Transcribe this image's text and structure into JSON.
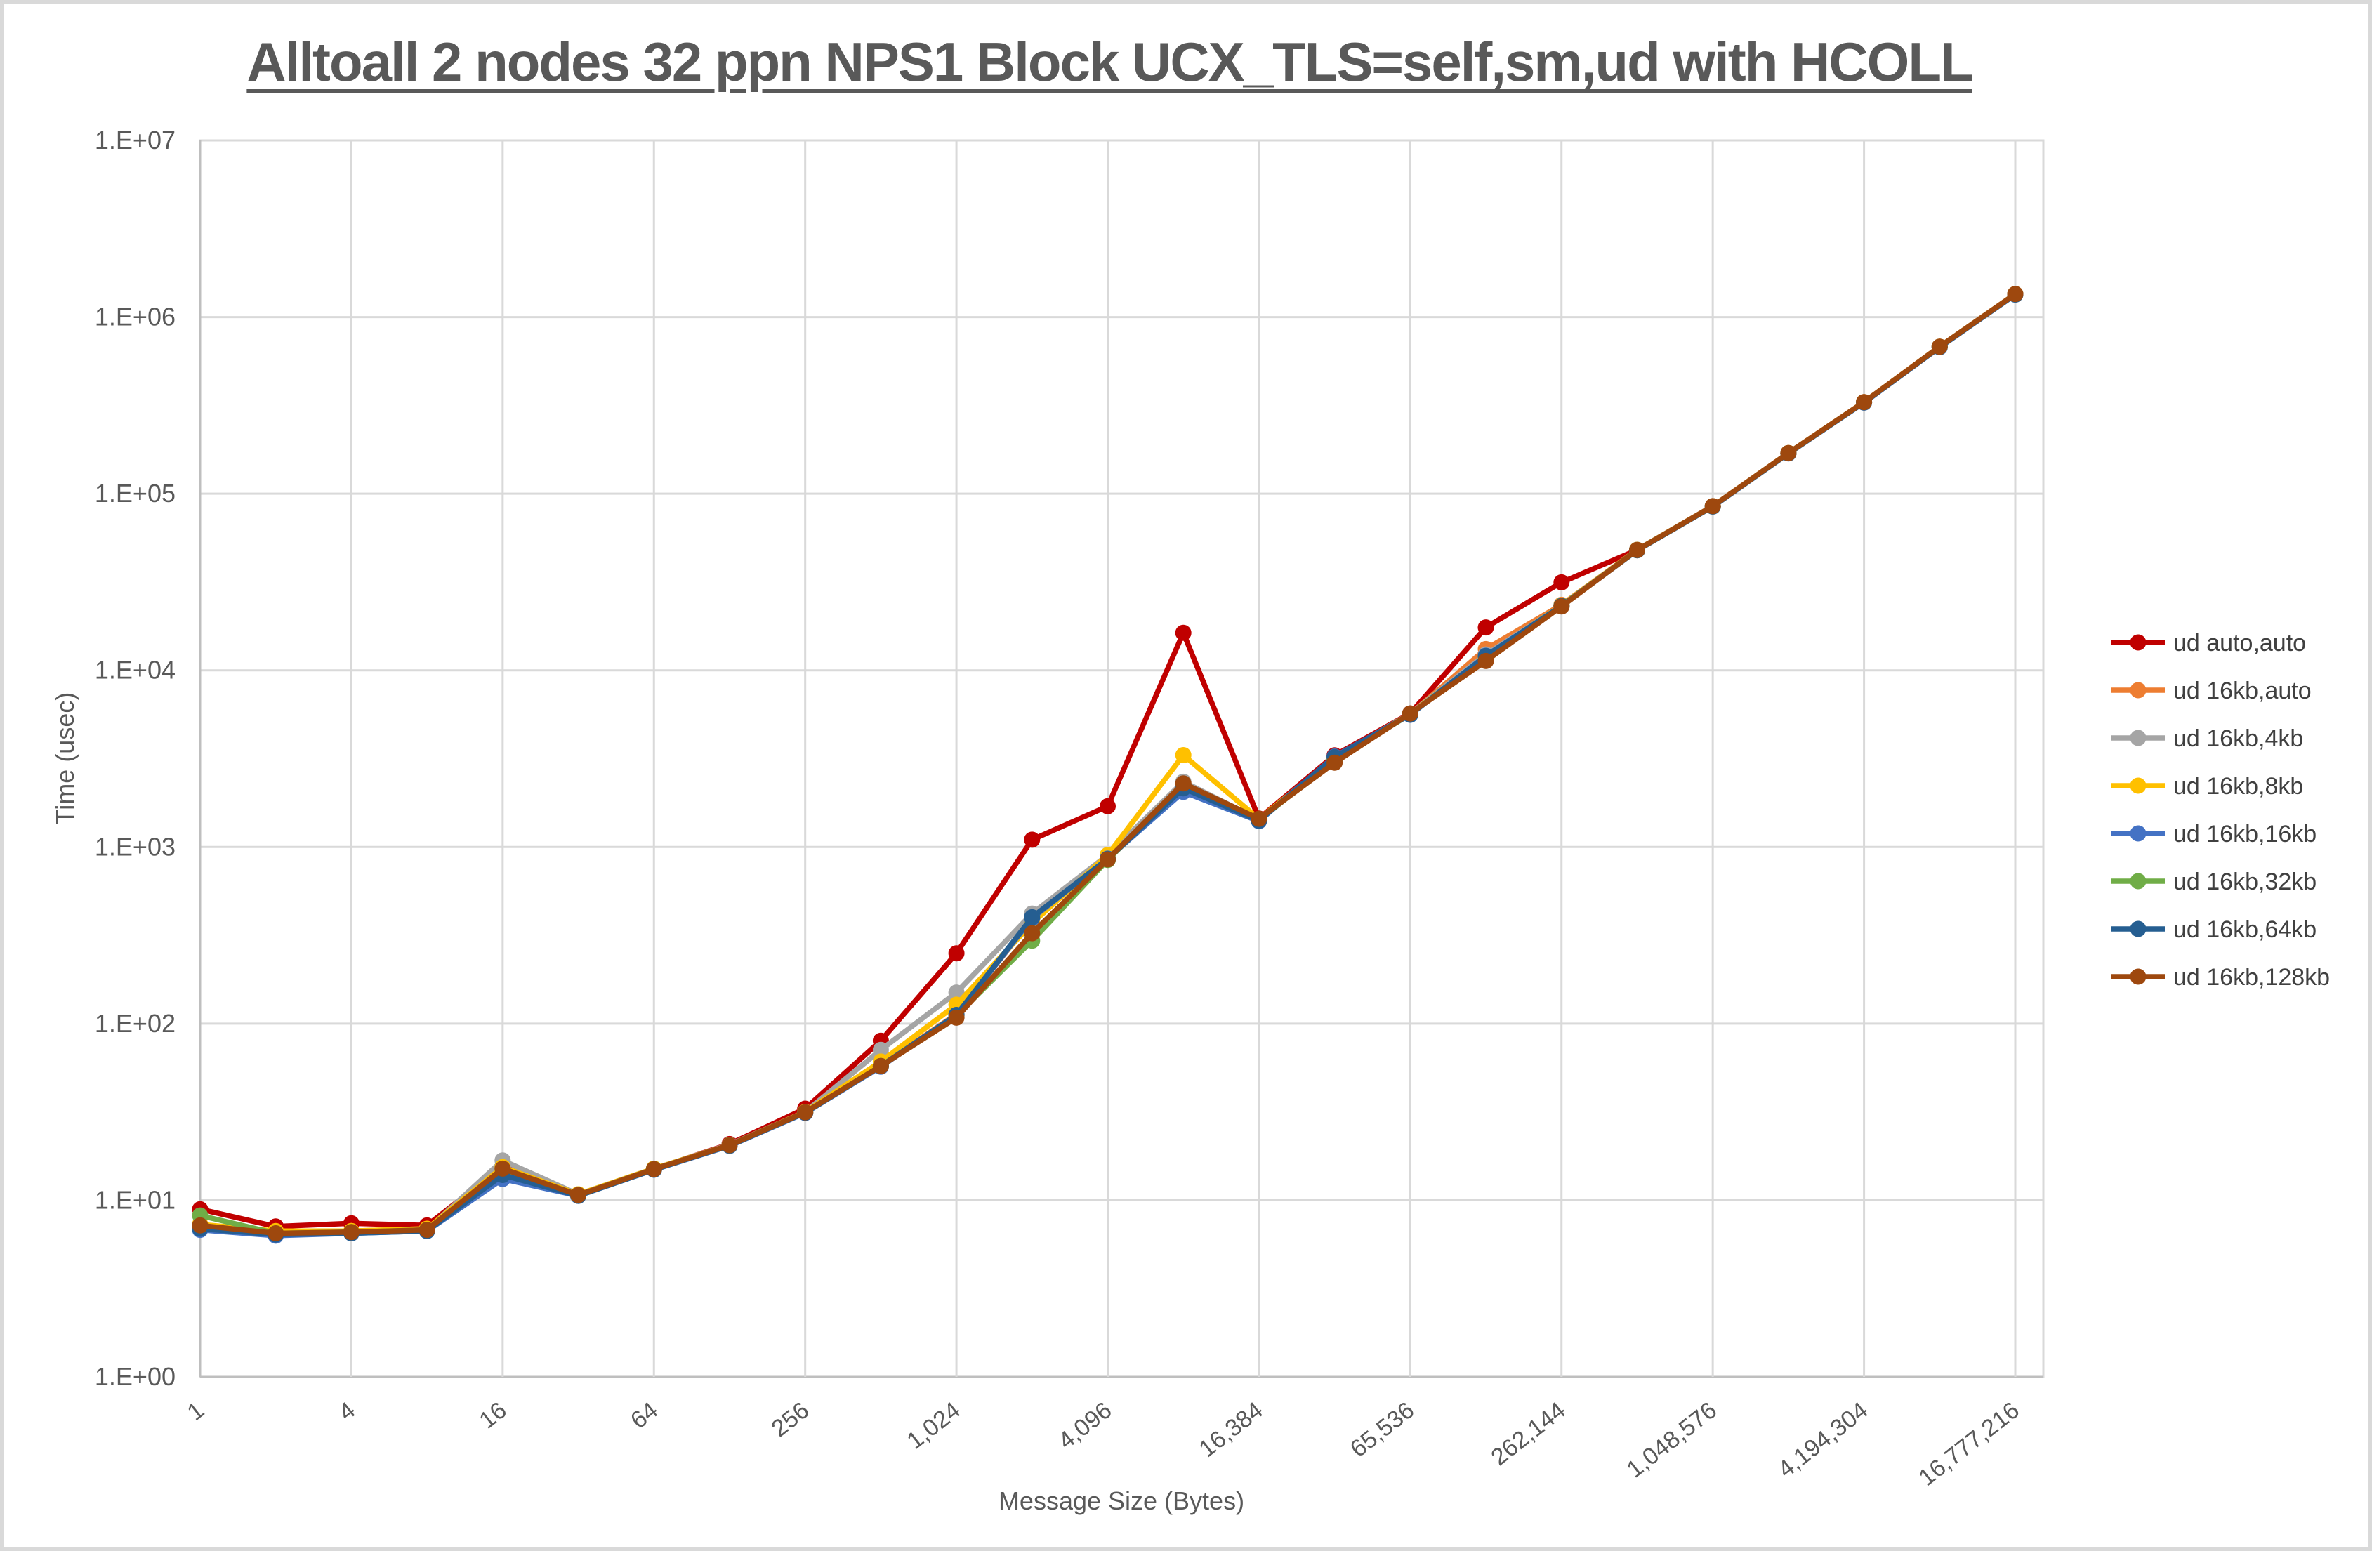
{
  "title": "Alltoall 2 nodes 32 ppn NPS1 Block UCX_TLS=self,sm,ud with HCOLL",
  "y_axis": {
    "title": "Time (usec)",
    "tick_labels": [
      "1.E+00",
      "1.E+01",
      "1.E+02",
      "1.E+03",
      "1.E+04",
      "1.E+05",
      "1.E+06",
      "1.E+07"
    ]
  },
  "x_axis": {
    "title": "Message Size (Bytes)",
    "tick_labels": [
      "1",
      "4",
      "16",
      "64",
      "256",
      "1,024",
      "4,096",
      "16,384",
      "65,536",
      "262,144",
      "1,048,576",
      "4,194,304",
      "16,777,216"
    ]
  },
  "legend": {
    "position": "right",
    "entries": [
      "ud auto,auto",
      "ud 16kb,auto",
      "ud 16kb,4kb",
      "ud 16kb,8kb",
      "ud 16kb,16kb",
      "ud 16kb,32kb",
      "ud 16kb,64kb",
      "ud 16kb,128kb"
    ]
  },
  "colors": {
    "grid": "#D9D9D9",
    "axis_line": "#BFBFBF",
    "tick_text": "#595959",
    "title_text": "#595959",
    "legend_text": "#404040"
  },
  "chart_data": {
    "type": "line",
    "title": "Alltoall 2 nodes 32 ppn NPS1 Block UCX_TLS=self,sm,ud with HCOLL",
    "xlabel": "Message Size (Bytes)",
    "ylabel": "Time (usec)",
    "x_scale": "log2-categories",
    "y_scale": "log10",
    "ylim": [
      1,
      10000000
    ],
    "grid": true,
    "legend_position": "right",
    "marker": "circle",
    "categories": [
      1,
      2,
      4,
      8,
      16,
      32,
      64,
      128,
      256,
      512,
      1024,
      2048,
      4096,
      8192,
      16384,
      32768,
      65536,
      131072,
      262144,
      524288,
      1048576,
      2097152,
      4194304,
      8388608,
      16777216
    ],
    "series": [
      {
        "name": "ud auto,auto",
        "color": "#C00000",
        "values": [
          8.9,
          7.1,
          7.4,
          7.2,
          15.5,
          10.7,
          15.0,
          20.8,
          33,
          80,
          250,
          1100,
          1700,
          16300,
          1450,
          3300,
          5700,
          17500,
          31500,
          48000,
          85000,
          170000,
          330000,
          680000,
          1350000
        ]
      },
      {
        "name": "ud 16kb,auto",
        "color": "#ED7D31",
        "values": [
          7.3,
          6.6,
          6.7,
          6.9,
          15.2,
          10.7,
          15.0,
          20.5,
          31.5,
          58,
          113,
          390,
          880,
          2320,
          1430,
          3150,
          5650,
          13200,
          23500,
          48000,
          85000,
          170000,
          330000,
          680000,
          1350000
        ]
      },
      {
        "name": "ud 16kb,4kb",
        "color": "#A5A5A5",
        "values": [
          7.2,
          6.6,
          6.6,
          6.8,
          16.8,
          10.8,
          15.1,
          20.6,
          31.6,
          71,
          150,
          420,
          900,
          2340,
          1430,
          3200,
          5680,
          12300,
          23200,
          48200,
          85000,
          170000,
          330000,
          680000,
          1350000
        ]
      },
      {
        "name": "ud 16kb,8kb",
        "color": "#FFC000",
        "values": [
          7.3,
          6.7,
          6.7,
          6.9,
          15.4,
          10.8,
          15.1,
          20.5,
          31.6,
          61,
          128,
          370,
          900,
          3310,
          1440,
          3150,
          5660,
          12000,
          23300,
          48100,
          85000,
          170000,
          330000,
          680000,
          1350000
        ]
      },
      {
        "name": "ud 16kb,16kb",
        "color": "#4472C4",
        "values": [
          6.8,
          6.3,
          6.5,
          6.7,
          13.2,
          10.6,
          14.9,
          20.3,
          31.2,
          57,
          112,
          395,
          860,
          2050,
          1400,
          3250,
          5600,
          12100,
          23100,
          47800,
          84500,
          169000,
          328000,
          675000,
          1340000
        ]
      },
      {
        "name": "ud 16kb,32kb",
        "color": "#70AD47",
        "values": [
          8.2,
          6.5,
          6.6,
          6.8,
          15.0,
          10.7,
          15.0,
          20.4,
          31.4,
          57.5,
          111,
          295,
          845,
          2250,
          1420,
          3100,
          5640,
          11900,
          23200,
          47900,
          84800,
          169500,
          329000,
          678000,
          1345000
        ]
      },
      {
        "name": "ud 16kb,64kb",
        "color": "#255E91",
        "values": [
          6.9,
          6.4,
          6.5,
          6.7,
          13.9,
          10.6,
          14.9,
          20.4,
          31.3,
          57.5,
          112,
          400,
          855,
          2150,
          1410,
          3230,
          5620,
          12050,
          23150,
          47900,
          84700,
          169300,
          328500,
          676000,
          1342000
        ]
      },
      {
        "name": "ud 16kb,128kb",
        "color": "#9E480E",
        "values": [
          7.2,
          6.5,
          6.6,
          6.8,
          15.1,
          10.7,
          15.0,
          20.5,
          31.5,
          57.5,
          108,
          325,
          850,
          2290,
          1445,
          3000,
          5700,
          11300,
          23000,
          48000,
          85000,
          170000,
          330000,
          680000,
          1350000
        ]
      }
    ]
  }
}
